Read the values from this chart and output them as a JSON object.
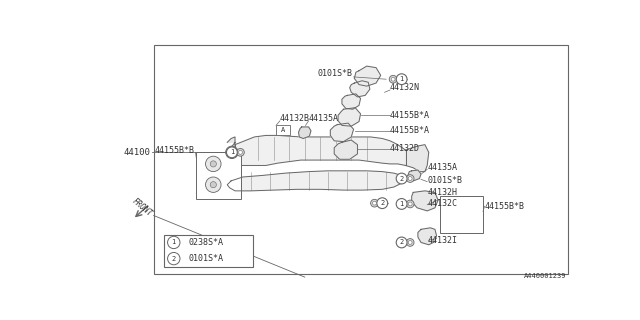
{
  "bg_color": "#ffffff",
  "line_color": "#666666",
  "text_color": "#333333",
  "part_number": "A440001239",
  "main_part": "44100",
  "legend": [
    {
      "symbol": "1",
      "code": "0238S*A"
    },
    {
      "symbol": "2",
      "code": "0101S*A"
    }
  ]
}
